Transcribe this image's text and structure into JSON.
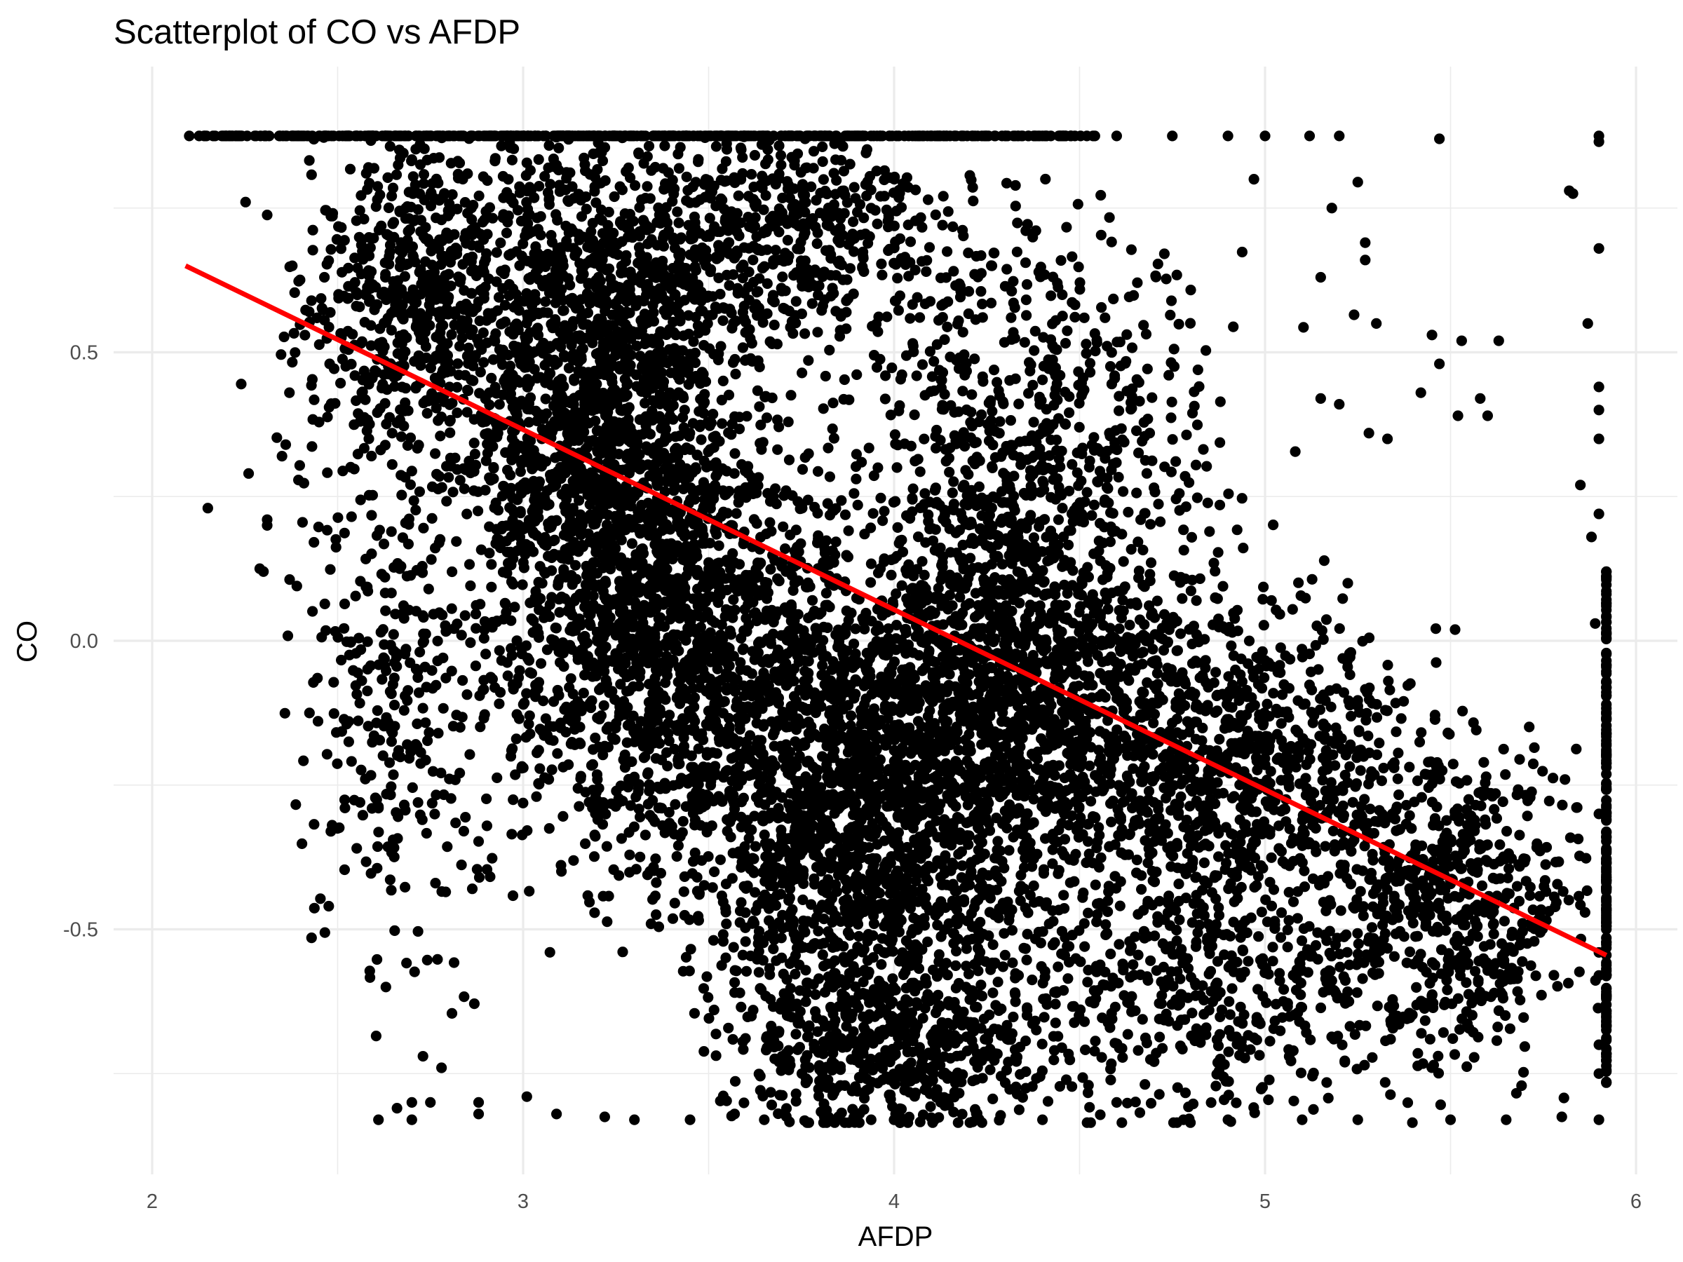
{
  "chart_data": {
    "type": "scatter",
    "title": "Scatterplot of CO vs AFDP",
    "xlabel": "AFDP",
    "ylabel": "CO",
    "xlim": [
      1.98,
      6.1
    ],
    "ylim": [
      -0.92,
      0.92
    ],
    "x_ticks": [
      2,
      3,
      4,
      5,
      6
    ],
    "x_tick_labels": [
      "2",
      "3",
      "4",
      "5",
      "6"
    ],
    "y_ticks": [
      -0.5,
      0.0,
      0.5
    ],
    "y_tick_labels": [
      "-0.5",
      "0.0",
      "0.5"
    ],
    "grid": true,
    "point_color": "#000000",
    "trend_color": "#ff0000",
    "trend_line": {
      "x": [
        2.09,
        5.92
      ],
      "y": [
        0.65,
        -0.545
      ]
    },
    "series": [
      {
        "points": [
          [
            2.1,
            0.875
          ],
          [
            2.14,
            0.875
          ],
          [
            2.2,
            0.875
          ],
          [
            2.28,
            0.875
          ],
          [
            2.36,
            0.875
          ],
          [
            2.45,
            0.875
          ],
          [
            2.55,
            0.875
          ],
          [
            4.3,
            0.875
          ],
          [
            4.45,
            0.875
          ],
          [
            4.6,
            0.875
          ],
          [
            4.75,
            0.875
          ],
          [
            4.9,
            0.875
          ],
          [
            5.0,
            0.875
          ],
          [
            5.12,
            0.875
          ],
          [
            5.2,
            0.875
          ],
          [
            5.47,
            0.87
          ],
          [
            5.9,
            0.875
          ],
          [
            5.9,
            0.865
          ],
          [
            5.83,
            0.775
          ],
          [
            5.82,
            0.78
          ],
          [
            2.15,
            0.23
          ],
          [
            2.24,
            0.445
          ],
          [
            2.26,
            0.29
          ],
          [
            2.29,
            0.125
          ],
          [
            2.3,
            0.12
          ],
          [
            2.31,
            0.2
          ],
          [
            2.31,
            0.21
          ],
          [
            2.35,
            0.32
          ],
          [
            2.36,
            0.34
          ],
          [
            2.37,
            0.43
          ],
          [
            2.39,
            0.095
          ],
          [
            2.53,
            -0.175
          ],
          [
            2.61,
            -0.29
          ],
          [
            2.63,
            -0.6
          ],
          [
            2.61,
            -0.83
          ],
          [
            2.66,
            -0.81
          ],
          [
            2.7,
            -0.8
          ],
          [
            2.7,
            -0.83
          ],
          [
            2.73,
            -0.72
          ],
          [
            2.75,
            -0.8
          ],
          [
            2.78,
            -0.74
          ],
          [
            2.88,
            -0.8
          ],
          [
            2.88,
            -0.82
          ],
          [
            3.01,
            -0.79
          ],
          [
            3.09,
            -0.82
          ],
          [
            3.22,
            -0.825
          ],
          [
            3.3,
            -0.83
          ],
          [
            3.45,
            -0.83
          ],
          [
            3.57,
            -0.82
          ],
          [
            3.65,
            -0.83
          ],
          [
            3.85,
            -0.825
          ],
          [
            4.0,
            -0.83
          ],
          [
            4.4,
            -0.83
          ],
          [
            4.6,
            -0.8
          ],
          [
            4.78,
            -0.83
          ],
          [
            4.9,
            -0.83
          ],
          [
            5.1,
            -0.83
          ],
          [
            5.25,
            -0.83
          ],
          [
            5.5,
            -0.83
          ],
          [
            5.65,
            -0.83
          ],
          [
            5.8,
            -0.825
          ],
          [
            5.9,
            -0.83
          ],
          [
            5.25,
            0.795
          ],
          [
            5.18,
            0.75
          ],
          [
            5.27,
            0.69
          ],
          [
            5.27,
            0.66
          ],
          [
            5.15,
            0.63
          ],
          [
            4.97,
            0.8
          ],
          [
            5.24,
            0.565
          ],
          [
            5.3,
            0.55
          ],
          [
            5.45,
            0.53
          ],
          [
            5.53,
            0.52
          ],
          [
            5.47,
            0.48
          ],
          [
            5.63,
            0.52
          ],
          [
            5.87,
            0.55
          ],
          [
            5.9,
            0.68
          ],
          [
            5.9,
            0.44
          ],
          [
            5.42,
            0.43
          ],
          [
            5.58,
            0.42
          ],
          [
            5.6,
            0.39
          ],
          [
            5.52,
            0.39
          ],
          [
            5.15,
            0.42
          ],
          [
            5.2,
            0.41
          ],
          [
            5.28,
            0.36
          ],
          [
            5.33,
            0.35
          ],
          [
            5.89,
            0.03
          ],
          [
            5.88,
            0.18
          ],
          [
            5.85,
            0.27
          ],
          [
            5.9,
            0.4
          ],
          [
            5.9,
            0.35
          ],
          [
            5.9,
            0.22
          ],
          [
            5.9,
            -0.58
          ],
          [
            5.9,
            -0.7
          ],
          [
            5.9,
            -0.75
          ],
          [
            5.9,
            -0.54
          ],
          [
            5.9,
            -0.3
          ]
        ]
      }
    ]
  }
}
